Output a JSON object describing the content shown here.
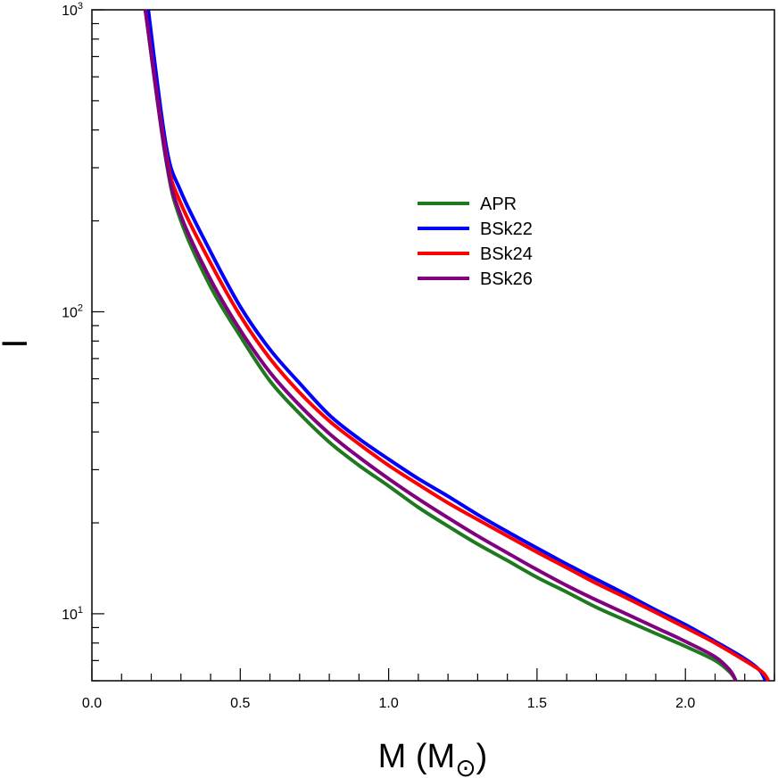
{
  "chart_data": {
    "type": "line",
    "title": "",
    "xlabel": "M (M",
    "xlabel_subscript": "⊙",
    "xlabel_close": ")",
    "ylabel": "I",
    "xlim": [
      0.0,
      2.3
    ],
    "ylim": [
      6.0,
      1000
    ],
    "yscale": "log",
    "grid": false,
    "legend_position": "upper-center",
    "x_ticks": [
      {
        "value": 0.0,
        "label": "0.0"
      },
      {
        "value": 0.5,
        "label": "0.5"
      },
      {
        "value": 1.0,
        "label": "1.0"
      },
      {
        "value": 1.5,
        "label": "1.5"
      },
      {
        "value": 2.0,
        "label": "2.0"
      }
    ],
    "y_ticks": [
      {
        "value": 10,
        "base": "10",
        "exp": "1"
      },
      {
        "value": 100,
        "base": "10",
        "exp": "2"
      },
      {
        "value": 1000,
        "base": "10",
        "exp": "3"
      }
    ],
    "series": [
      {
        "name": "APR",
        "color": "#1f7a1f",
        "x": [
          0.18,
          0.25,
          0.3,
          0.4,
          0.5,
          0.6,
          0.7,
          0.8,
          0.9,
          1.0,
          1.1,
          1.2,
          1.3,
          1.4,
          1.5,
          1.6,
          1.7,
          1.8,
          1.9,
          2.0,
          2.1,
          2.15,
          2.17
        ],
        "y": [
          1000,
          316,
          200,
          121,
          83,
          59,
          46,
          37,
          31,
          26.5,
          22.5,
          19.5,
          17,
          15,
          13.2,
          11.8,
          10.5,
          9.5,
          8.6,
          7.8,
          7.0,
          6.4,
          6.0
        ]
      },
      {
        "name": "BSk22",
        "color": "#0000ff",
        "x": [
          0.19,
          0.25,
          0.3,
          0.4,
          0.5,
          0.6,
          0.7,
          0.8,
          0.9,
          1.0,
          1.1,
          1.2,
          1.3,
          1.4,
          1.5,
          1.6,
          1.7,
          1.8,
          1.9,
          2.0,
          2.1,
          2.2,
          2.25,
          2.27
        ],
        "y": [
          1000,
          355,
          250,
          158,
          104,
          75,
          58,
          45.5,
          38,
          32.5,
          28,
          24.5,
          21.3,
          18.7,
          16.5,
          14.6,
          13,
          11.6,
          10.3,
          9.2,
          8.1,
          7.1,
          6.5,
          6.0
        ]
      },
      {
        "name": "BSk24",
        "color": "#ff0000",
        "x": [
          0.18,
          0.25,
          0.3,
          0.4,
          0.5,
          0.6,
          0.7,
          0.8,
          0.9,
          1.0,
          1.1,
          1.2,
          1.3,
          1.4,
          1.5,
          1.6,
          1.7,
          1.8,
          1.9,
          2.0,
          2.1,
          2.2,
          2.26,
          2.28
        ],
        "y": [
          1000,
          331,
          228,
          145,
          97,
          70,
          54,
          43.5,
          36.5,
          31,
          26.8,
          23.3,
          20.5,
          18.1,
          16,
          14.2,
          12.6,
          11.3,
          10.1,
          9.0,
          8.0,
          7.0,
          6.4,
          6.0
        ]
      },
      {
        "name": "BSk26",
        "color": "#800080",
        "x": [
          0.18,
          0.25,
          0.3,
          0.4,
          0.5,
          0.6,
          0.7,
          0.8,
          0.9,
          1.0,
          1.1,
          1.2,
          1.3,
          1.4,
          1.5,
          1.6,
          1.7,
          1.8,
          1.9,
          2.0,
          2.1,
          2.15,
          2.17
        ],
        "y": [
          1000,
          320,
          208,
          128,
          87,
          63,
          49,
          39.5,
          33,
          28,
          24,
          20.8,
          18.1,
          15.9,
          14,
          12.4,
          11.1,
          10,
          9,
          8.1,
          7.2,
          6.5,
          6.0
        ]
      }
    ]
  }
}
